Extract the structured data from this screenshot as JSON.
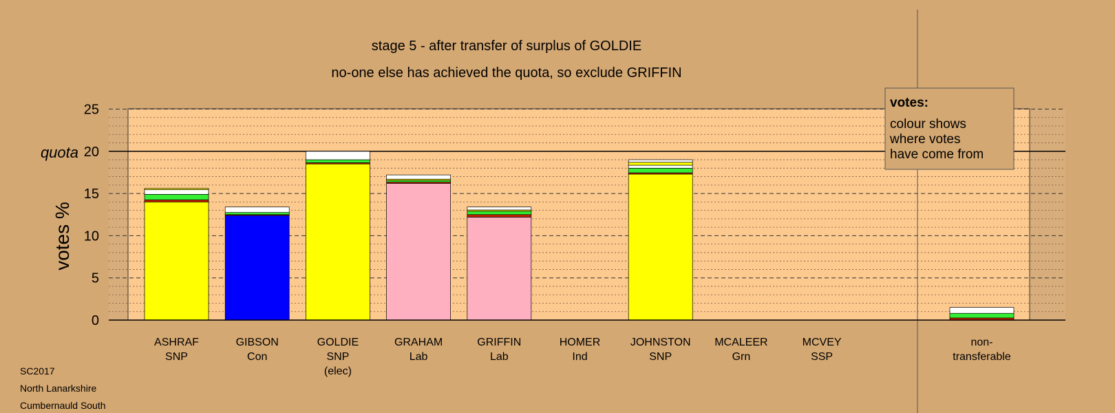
{
  "chart_data": {
    "type": "bar",
    "stacked": true,
    "title": "stage 5 - after transfer of surplus of GOLDIE",
    "subtitle": "no-one else has achieved the quota, so exclude GRIFFIN",
    "ylabel": "votes %",
    "quota_label": "quota",
    "quota": 20,
    "ylim": [
      0,
      25
    ],
    "yticks": [
      0,
      5,
      10,
      15,
      20,
      25
    ],
    "grid": true,
    "legend": {
      "title": "votes:",
      "lines": [
        "colour shows",
        "where votes",
        "have come from"
      ],
      "position": "top-right"
    },
    "colors": {
      "snp": "#ffff00",
      "con": "#0000ff",
      "lab": "#ffb0c0",
      "green": "#33ee33",
      "red": "#cc2200",
      "white": "#ffffff",
      "chart_bg": "#fcc98f",
      "page_bg": "#d4a873",
      "shade_bg": "#d8ad7c"
    },
    "candidates": [
      {
        "name": "ASHRAF",
        "party": "SNP",
        "note": "",
        "segments": [
          {
            "color": "snp",
            "value": 14.0
          },
          {
            "color": "red",
            "value": 0.25
          },
          {
            "color": "green",
            "value": 0.65
          },
          {
            "color": "white",
            "value": 0.55
          },
          {
            "color": "snp",
            "value": 0.15
          }
        ]
      },
      {
        "name": "GIBSON",
        "party": "Con",
        "note": "",
        "segments": [
          {
            "color": "con",
            "value": 12.4
          },
          {
            "color": "red",
            "value": 0.1
          },
          {
            "color": "green",
            "value": 0.25
          },
          {
            "color": "white",
            "value": 0.65
          }
        ]
      },
      {
        "name": "GOLDIE",
        "party": "SNP",
        "note": "(elec)",
        "segments": [
          {
            "color": "snp",
            "value": 18.5
          },
          {
            "color": "red",
            "value": 0.15
          },
          {
            "color": "green",
            "value": 0.35
          },
          {
            "color": "white",
            "value": 1.0
          }
        ]
      },
      {
        "name": "GRAHAM",
        "party": "Lab",
        "note": "",
        "segments": [
          {
            "color": "lab",
            "value": 16.2
          },
          {
            "color": "red",
            "value": 0.15
          },
          {
            "color": "green",
            "value": 0.2
          },
          {
            "color": "snp",
            "value": 0.15
          },
          {
            "color": "white",
            "value": 0.5
          }
        ]
      },
      {
        "name": "GRIFFIN",
        "party": "Lab",
        "note": "",
        "segments": [
          {
            "color": "lab",
            "value": 12.2
          },
          {
            "color": "red",
            "value": 0.3
          },
          {
            "color": "green",
            "value": 0.4
          },
          {
            "color": "snp",
            "value": 0.15
          },
          {
            "color": "white",
            "value": 0.35
          }
        ]
      },
      {
        "name": "HOMER",
        "party": "Ind",
        "note": "",
        "segments": []
      },
      {
        "name": "JOHNSTON",
        "party": "SNP",
        "note": "",
        "segments": [
          {
            "color": "snp",
            "value": 17.3
          },
          {
            "color": "red",
            "value": 0.15
          },
          {
            "color": "green",
            "value": 0.55
          },
          {
            "color": "white",
            "value": 0.35
          },
          {
            "color": "snp",
            "value": 0.35
          },
          {
            "color": "white",
            "value": 0.3
          }
        ]
      },
      {
        "name": "MCALEER",
        "party": "Grn",
        "note": "",
        "segments": []
      },
      {
        "name": "MCVEY",
        "party": "SSP",
        "note": "",
        "segments": []
      }
    ],
    "nontransferable": {
      "line1": "non-",
      "line2": "transferable",
      "segments": [
        {
          "color": "red",
          "value": 0.25
        },
        {
          "color": "green",
          "value": 0.55
        },
        {
          "color": "white",
          "value": 0.7
        }
      ]
    }
  },
  "footer": {
    "line1": "SC2017",
    "line2": "North Lanarkshire",
    "line3": "Cumbernauld South"
  }
}
